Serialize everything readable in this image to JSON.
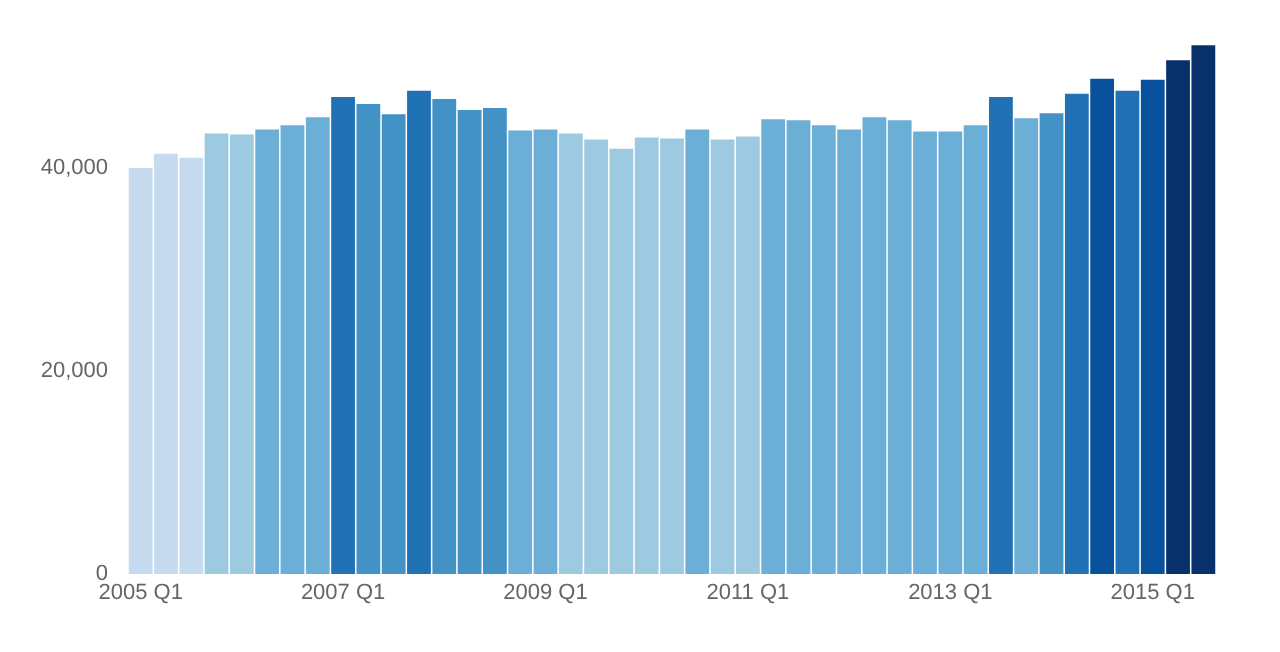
{
  "chart_data": {
    "type": "bar",
    "categories": [
      "2005 Q1",
      null,
      null,
      null,
      null,
      null,
      null,
      null,
      "2007 Q1",
      null,
      null,
      null,
      null,
      null,
      null,
      null,
      "2009 Q1",
      null,
      null,
      null,
      null,
      null,
      null,
      null,
      "2011 Q1",
      null,
      null,
      null,
      null,
      null,
      null,
      null,
      "2013 Q1",
      null,
      null,
      null,
      null,
      null,
      null,
      null,
      "2015 Q1",
      null,
      null
    ],
    "values": [
      40000,
      41400,
      41000,
      43400,
      43300,
      43800,
      44200,
      45000,
      47000,
      46300,
      45300,
      47600,
      46800,
      45700,
      45900,
      43700,
      43800,
      43400,
      42800,
      41900,
      43000,
      42900,
      43800,
      42800,
      43100,
      44800,
      44700,
      44200,
      43800,
      45000,
      44700,
      43600,
      43600,
      44200,
      47000,
      44900,
      45400,
      47300,
      48800,
      47600,
      48700,
      50600,
      52100
    ],
    "colors": [
      "#c6dbef",
      "#c6dbef",
      "#c6dbef",
      "#9ecae1",
      "#9ecae1",
      "#6baed6",
      "#6baed6",
      "#6baed6",
      "#2171b5",
      "#4292c6",
      "#4292c6",
      "#2171b5",
      "#4292c6",
      "#4292c6",
      "#4292c6",
      "#6baed6",
      "#6baed6",
      "#9ecae1",
      "#9ecae1",
      "#9ecae1",
      "#9ecae1",
      "#9ecae1",
      "#6baed6",
      "#9ecae1",
      "#9ecae1",
      "#6baed6",
      "#6baed6",
      "#6baed6",
      "#6baed6",
      "#6baed6",
      "#6baed6",
      "#6baed6",
      "#6baed6",
      "#6baed6",
      "#2171b5",
      "#6baed6",
      "#4292c6",
      "#2171b5",
      "#08519c",
      "#2171b5",
      "#08519c",
      "#08306b",
      "#08306b"
    ],
    "ylim": [
      0,
      53000
    ],
    "yticks": [
      0,
      {
        "value": 20000,
        "label": "20,000"
      },
      {
        "value": 40000,
        "label": "40,000"
      }
    ],
    "data_labels": false
  }
}
